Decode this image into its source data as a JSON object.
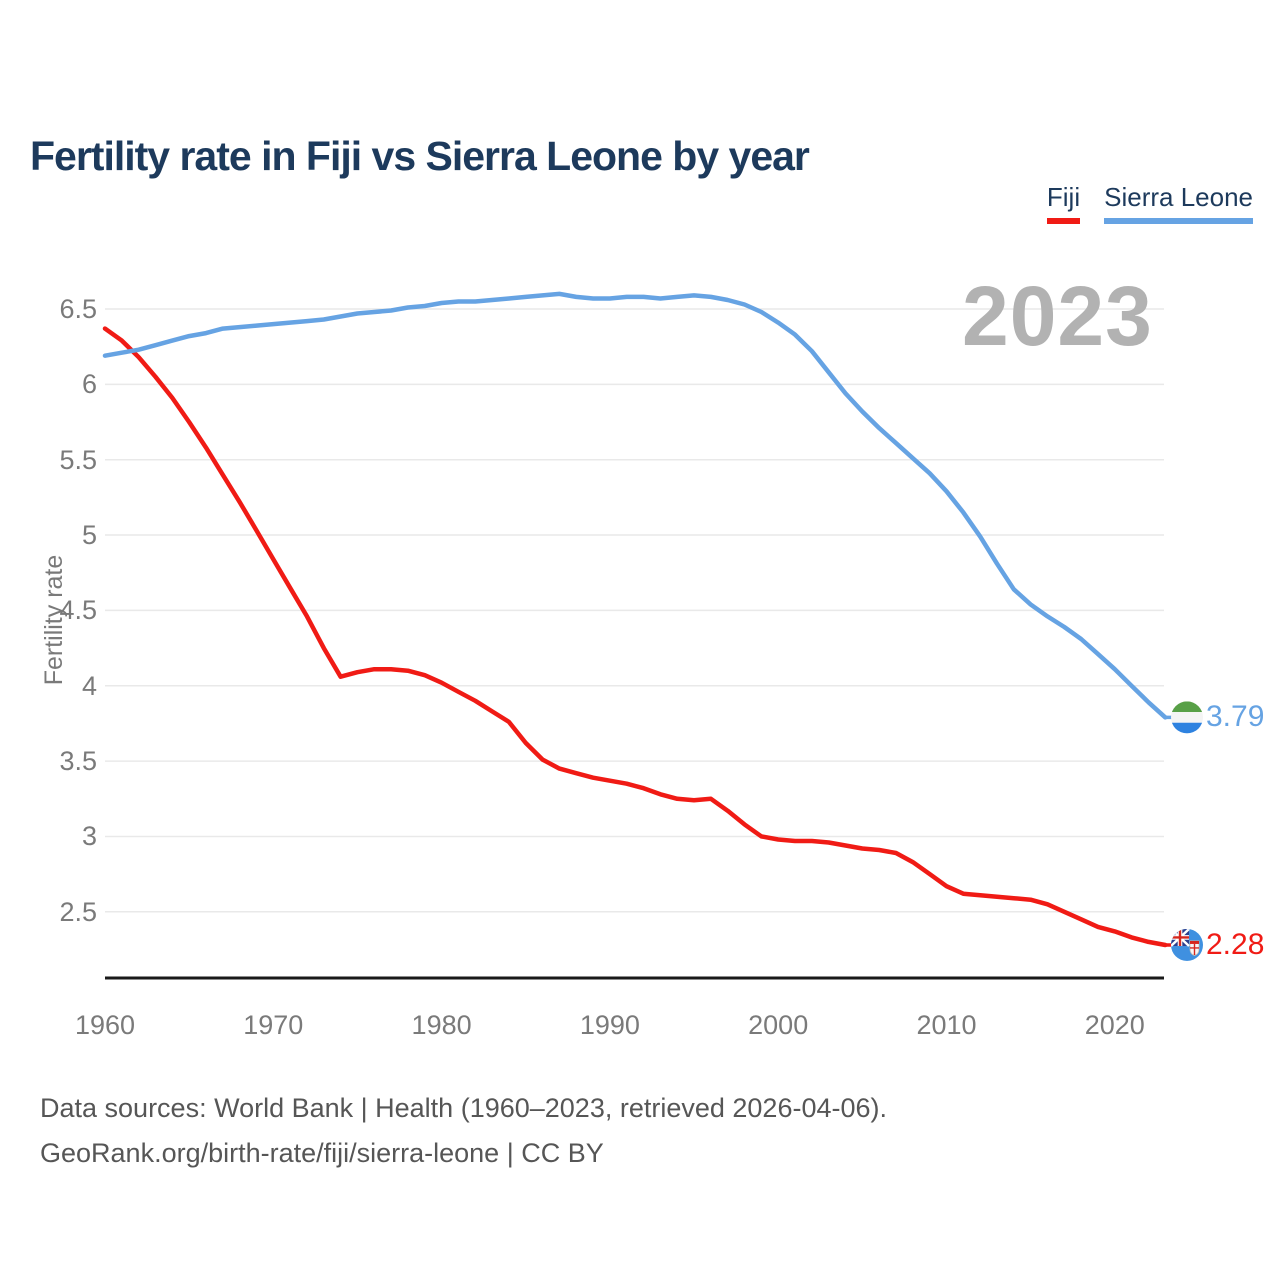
{
  "header": {
    "title": "Fertility rate in Fiji vs Sierra Leone by year"
  },
  "legend": [
    {
      "label": "Fiji",
      "color": "#f01b15"
    },
    {
      "label": "Sierra Leone",
      "color": "#66a3e3"
    }
  ],
  "watermark": "2023",
  "colors": {
    "title_text": "#1d3a5c",
    "axis_text": "#7a7a7a",
    "gridline": "#e9e9e9",
    "axis_line": "#1a1a1a",
    "watermark": "#b2b2b2",
    "fiji_red": "#f01b15",
    "sierra_leone_blue": "#66a3e3"
  },
  "footer": {
    "line1": "Data sources: World Bank | Health (1960–2023, retrieved 2026-04-06).",
    "line2": "GeoRank.org/birth-rate/fiji/sierra-leone | CC BY"
  },
  "chart_data": {
    "type": "line",
    "title": "Fertility rate in Fiji vs Sierra Leone by year",
    "xlabel": "",
    "ylabel": "Fertility rate",
    "grid": "horizontal",
    "legend_position": "top-right",
    "xlim": [
      1960,
      2023
    ],
    "ylim": [
      2.06,
      6.69
    ],
    "yticks": [
      2.5,
      3,
      3.5,
      4,
      4.5,
      5,
      5.5,
      6,
      6.5
    ],
    "xticks": [
      1960,
      1970,
      1980,
      1990,
      2000,
      2010,
      2020
    ],
    "x": [
      1960,
      1961,
      1962,
      1963,
      1964,
      1965,
      1966,
      1967,
      1968,
      1969,
      1970,
      1971,
      1972,
      1973,
      1974,
      1975,
      1976,
      1977,
      1978,
      1979,
      1980,
      1981,
      1982,
      1983,
      1984,
      1985,
      1986,
      1987,
      1988,
      1989,
      1990,
      1991,
      1992,
      1993,
      1994,
      1995,
      1996,
      1997,
      1998,
      1999,
      2000,
      2001,
      2002,
      2003,
      2004,
      2005,
      2006,
      2007,
      2008,
      2009,
      2010,
      2011,
      2012,
      2013,
      2014,
      2015,
      2016,
      2017,
      2018,
      2019,
      2020,
      2021,
      2022,
      2023
    ],
    "series": [
      {
        "name": "Fiji",
        "color": "#f01b15",
        "values": [
          6.37,
          6.29,
          6.18,
          6.05,
          5.91,
          5.75,
          5.58,
          5.4,
          5.22,
          5.03,
          4.84,
          4.65,
          4.46,
          4.25,
          4.06,
          4.09,
          4.11,
          4.11,
          4.1,
          4.07,
          4.02,
          3.96,
          3.9,
          3.83,
          3.76,
          3.62,
          3.51,
          3.45,
          3.42,
          3.39,
          3.37,
          3.35,
          3.32,
          3.28,
          3.25,
          3.24,
          3.25,
          3.17,
          3.08,
          3.0,
          2.98,
          2.97,
          2.97,
          2.96,
          2.94,
          2.92,
          2.91,
          2.89,
          2.83,
          2.75,
          2.67,
          2.62,
          2.61,
          2.6,
          2.59,
          2.58,
          2.55,
          2.5,
          2.45,
          2.4,
          2.37,
          2.33,
          2.3,
          2.28
        ]
      },
      {
        "name": "Sierra Leone",
        "color": "#66a3e3",
        "values": [
          6.19,
          6.21,
          6.23,
          6.26,
          6.29,
          6.32,
          6.34,
          6.37,
          6.38,
          6.39,
          6.4,
          6.41,
          6.42,
          6.43,
          6.45,
          6.47,
          6.48,
          6.49,
          6.51,
          6.52,
          6.54,
          6.55,
          6.55,
          6.56,
          6.57,
          6.58,
          6.59,
          6.6,
          6.58,
          6.57,
          6.57,
          6.58,
          6.58,
          6.57,
          6.58,
          6.59,
          6.58,
          6.56,
          6.53,
          6.48,
          6.41,
          6.33,
          6.22,
          6.08,
          5.94,
          5.82,
          5.71,
          5.61,
          5.51,
          5.41,
          5.29,
          5.15,
          4.99,
          4.81,
          4.64,
          4.54,
          4.46,
          4.39,
          4.31,
          4.21,
          4.11,
          4.0,
          3.89,
          3.79
        ]
      }
    ],
    "end_labels": [
      {
        "series": "Sierra Leone",
        "value": "3.79",
        "flag": "sierra-leone"
      },
      {
        "series": "Fiji",
        "value": "2.28",
        "flag": "fiji"
      }
    ]
  }
}
